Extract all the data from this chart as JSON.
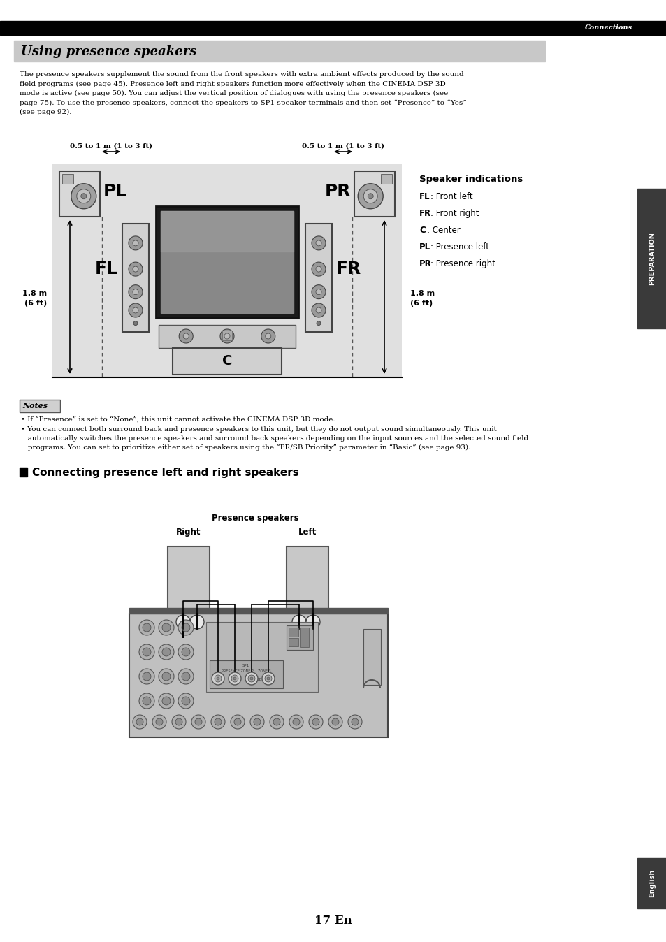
{
  "title": "Using presence speakers",
  "connections_label": "Connections",
  "body_text_lines": [
    "The presence speakers supplement the sound from the front speakers with extra ambient effects produced by the sound",
    "field programs (see page 45). Presence left and right speakers function more effectively when the CINEMA DSP 3D",
    "mode is active (see page 50). You can adjust the vertical position of dialogues with using the presence speakers (see",
    "page 75). To use the presence speakers, connect the speakers to SP1 speaker terminals and then set “Presence” to “Yes”",
    "(see page 92)."
  ],
  "dim_top": "0.5 to 1 m (1 to 3 ft)",
  "dim_side_1": "1.8 m",
  "dim_side_2": "(6 ft)",
  "indications_title": "Speaker indications",
  "indications": [
    [
      "FL",
      ": Front left"
    ],
    [
      "FR",
      ": Front right"
    ],
    [
      "C",
      ": Center"
    ],
    [
      "PL",
      ": Presence left"
    ],
    [
      "PR",
      ": Presence right"
    ]
  ],
  "notes_title": "Notes",
  "note1": "• If “Presence” is set to “None”, this unit cannot activate the CINEMA DSP 3D mode.",
  "note2_line1": "• You can connect both surround back and presence speakers to this unit, but they do not output sound simultaneously. This unit",
  "note2_line2": "   automatically switches the presence speakers and surround back speakers depending on the input sources and the selected sound field",
  "note2_line3": "   programs. You can set to prioritize either set of speakers using the “PR/SB Priority” parameter in “Basic” (see page 93).",
  "section2_title": "Connecting presence left and right speakers",
  "presence_label": "Presence speakers",
  "right_label": "Right",
  "left_label": "Left",
  "page_number": "17 En",
  "preparation_text": "PREPARATION",
  "english_text": "English",
  "bg_color": "#ffffff",
  "header_bg": "#000000",
  "title_bg": "#c8c8c8",
  "diagram_bg": "#e0e0e0",
  "prep_tab_color": "#3a3a3a",
  "eng_tab_color": "#3a3a3a"
}
